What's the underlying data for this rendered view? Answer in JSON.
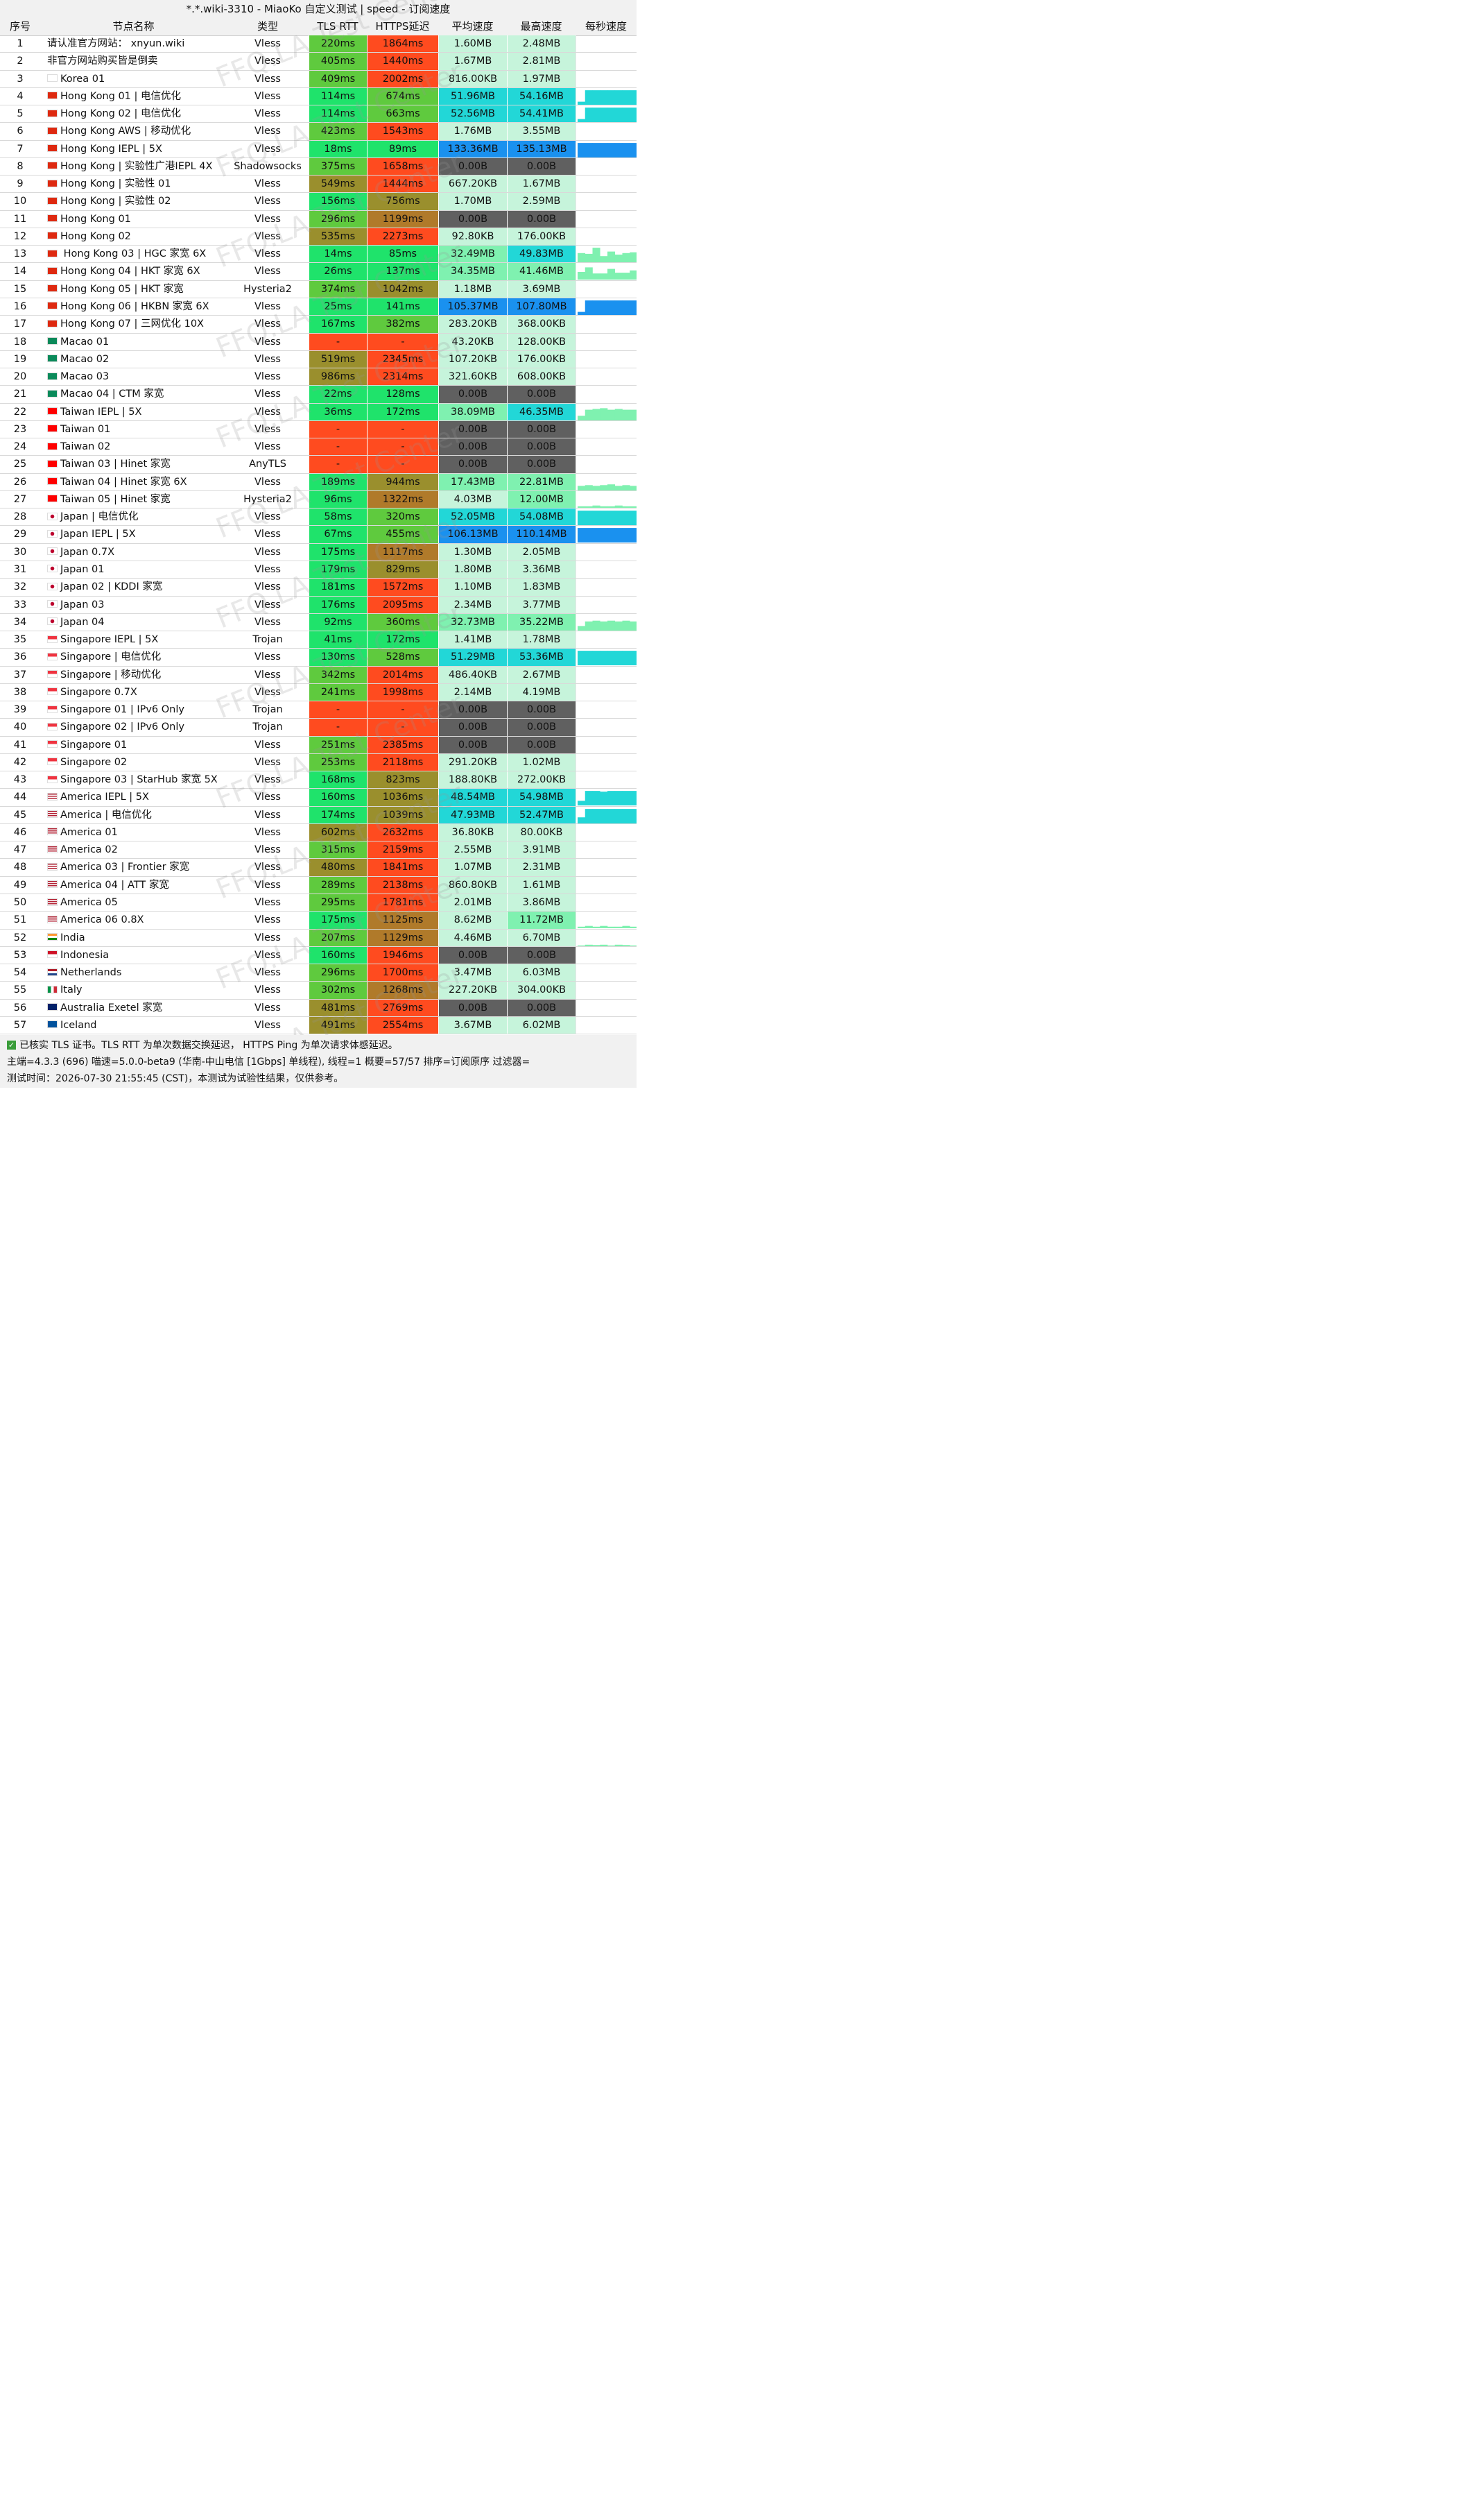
{
  "title": "*.*.wiki-3310 - MiaoKo 自定义测试 | speed - 订阅速度",
  "columns": [
    "序号",
    "节点名称",
    "类型",
    "TLS RTT",
    "HTTPS延迟",
    "平均速度",
    "最高速度",
    "每秒速度"
  ],
  "watermark": "FFQ.LA Test Center",
  "rows": [
    {
      "idx": "1",
      "flag": "",
      "name": "请认准官方网站： xnyun.wiki",
      "type": "Vless",
      "tls": "220ms",
      "https": "1864ms",
      "avg": "1.60MB",
      "max": "2.48MB",
      "spark": []
    },
    {
      "idx": "2",
      "flag": "",
      "name": "非官方网站购买皆是倒卖",
      "type": "Vless",
      "tls": "405ms",
      "https": "1440ms",
      "avg": "1.67MB",
      "max": "2.81MB",
      "spark": []
    },
    {
      "idx": "3",
      "flag": "kr",
      "name": "Korea 01",
      "type": "Vless",
      "tls": "409ms",
      "https": "2002ms",
      "avg": "816.00KB",
      "max": "1.97MB",
      "spark": []
    },
    {
      "idx": "4",
      "flag": "hk",
      "name": "Hong Kong 01 | 电信优化",
      "type": "Vless",
      "tls": "114ms",
      "https": "674ms",
      "avg": "51.96MB",
      "max": "54.16MB",
      "spark": [
        0.2,
        0.95,
        0.95,
        0.95,
        0.95,
        0.95,
        0.95,
        0.95
      ]
    },
    {
      "idx": "5",
      "flag": "hk",
      "name": "Hong Kong 02 | 电信优化",
      "type": "Vless",
      "tls": "114ms",
      "https": "663ms",
      "avg": "52.56MB",
      "max": "54.41MB",
      "spark": [
        0.2,
        0.95,
        0.95,
        0.95,
        0.95,
        0.95,
        0.95,
        0.95
      ]
    },
    {
      "idx": "6",
      "flag": "hk",
      "name": "Hong Kong AWS | 移动优化",
      "type": "Vless",
      "tls": "423ms",
      "https": "1543ms",
      "avg": "1.76MB",
      "max": "3.55MB",
      "spark": []
    },
    {
      "idx": "7",
      "flag": "hk",
      "name": "Hong Kong IEPL | 5X",
      "type": "Vless",
      "tls": "18ms",
      "https": "89ms",
      "avg": "133.36MB",
      "max": "135.13MB",
      "spark": [
        0.95,
        0.95,
        0.95,
        0.95,
        0.95,
        0.95,
        0.95,
        0.95
      ]
    },
    {
      "idx": "8",
      "flag": "hk",
      "name": "Hong Kong | 实验性广港IEPL 4X",
      "type": "Shadowsocks",
      "tls": "375ms",
      "https": "1658ms",
      "avg": "0.00B",
      "max": "0.00B",
      "spark": []
    },
    {
      "idx": "9",
      "flag": "hk",
      "name": "Hong Kong | 实验性 01",
      "type": "Vless",
      "tls": "549ms",
      "https": "1444ms",
      "avg": "667.20KB",
      "max": "1.67MB",
      "spark": []
    },
    {
      "idx": "10",
      "flag": "hk",
      "name": "Hong Kong | 实验性 02",
      "type": "Vless",
      "tls": "156ms",
      "https": "756ms",
      "avg": "1.70MB",
      "max": "2.59MB",
      "spark": []
    },
    {
      "idx": "11",
      "flag": "hk",
      "name": "Hong Kong 01",
      "type": "Vless",
      "tls": "296ms",
      "https": "1199ms",
      "avg": "0.00B",
      "max": "0.00B",
      "spark": []
    },
    {
      "idx": "12",
      "flag": "hk",
      "name": "Hong Kong 02",
      "type": "Vless",
      "tls": "535ms",
      "https": "2273ms",
      "avg": "92.80KB",
      "max": "176.00KB",
      "spark": []
    },
    {
      "idx": "13",
      "flag": "hk",
      "name": " Hong Kong 03 | HGC 家宽 6X",
      "type": "Vless",
      "tls": "14ms",
      "https": "85ms",
      "avg": "32.49MB",
      "max": "49.83MB",
      "spark": [
        0.6,
        0.55,
        0.95,
        0.4,
        0.7,
        0.5,
        0.6,
        0.65
      ]
    },
    {
      "idx": "14",
      "flag": "hk",
      "name": "Hong Kong 04 | HKT 家宽 6X",
      "type": "Vless",
      "tls": "26ms",
      "https": "137ms",
      "avg": "34.35MB",
      "max": "41.46MB",
      "spark": [
        0.5,
        0.8,
        0.4,
        0.4,
        0.7,
        0.45,
        0.45,
        0.6
      ]
    },
    {
      "idx": "15",
      "flag": "hk",
      "name": "Hong Kong 05 | HKT 家宽",
      "type": "Hysteria2",
      "tls": "374ms",
      "https": "1042ms",
      "avg": "1.18MB",
      "max": "3.69MB",
      "spark": []
    },
    {
      "idx": "16",
      "flag": "hk",
      "name": "Hong Kong 06 | HKBN 家宽 6X",
      "type": "Vless",
      "tls": "25ms",
      "https": "141ms",
      "avg": "105.37MB",
      "max": "107.80MB",
      "spark": [
        0.2,
        0.95,
        0.95,
        0.95,
        0.95,
        0.95,
        0.95,
        0.95
      ]
    },
    {
      "idx": "17",
      "flag": "hk",
      "name": "Hong Kong 07 | 三网优化 10X",
      "type": "Vless",
      "tls": "167ms",
      "https": "382ms",
      "avg": "283.20KB",
      "max": "368.00KB",
      "spark": []
    },
    {
      "idx": "18",
      "flag": "mo",
      "name": "Macao 01",
      "type": "Vless",
      "tls": "-",
      "https": "-",
      "avg": "43.20KB",
      "max": "128.00KB",
      "spark": []
    },
    {
      "idx": "19",
      "flag": "mo",
      "name": "Macao 02",
      "type": "Vless",
      "tls": "519ms",
      "https": "2345ms",
      "avg": "107.20KB",
      "max": "176.00KB",
      "spark": []
    },
    {
      "idx": "20",
      "flag": "mo",
      "name": "Macao 03",
      "type": "Vless",
      "tls": "986ms",
      "https": "2314ms",
      "avg": "321.60KB",
      "max": "608.00KB",
      "spark": []
    },
    {
      "idx": "21",
      "flag": "mo",
      "name": "Macao 04 | CTM 家宽",
      "type": "Vless",
      "tls": "22ms",
      "https": "128ms",
      "avg": "0.00B",
      "max": "0.00B",
      "spark": []
    },
    {
      "idx": "22",
      "flag": "tw",
      "name": "Taiwan IEPL | 5X",
      "type": "Vless",
      "tls": "36ms",
      "https": "172ms",
      "avg": "38.09MB",
      "max": "46.35MB",
      "spark": [
        0.3,
        0.7,
        0.75,
        0.8,
        0.7,
        0.75,
        0.7,
        0.7
      ]
    },
    {
      "idx": "23",
      "flag": "tw",
      "name": "Taiwan 01",
      "type": "Vless",
      "tls": "-",
      "https": "-",
      "avg": "0.00B",
      "max": "0.00B",
      "spark": []
    },
    {
      "idx": "24",
      "flag": "tw",
      "name": "Taiwan 02",
      "type": "Vless",
      "tls": "-",
      "https": "-",
      "avg": "0.00B",
      "max": "0.00B",
      "spark": []
    },
    {
      "idx": "25",
      "flag": "tw",
      "name": "Taiwan 03 | Hinet 家宽",
      "type": "AnyTLS",
      "tls": "-",
      "https": "-",
      "avg": "0.00B",
      "max": "0.00B",
      "spark": []
    },
    {
      "idx": "26",
      "flag": "tw",
      "name": "Taiwan 04 | Hinet 家宽 6X",
      "type": "Vless",
      "tls": "189ms",
      "https": "944ms",
      "avg": "17.43MB",
      "max": "22.81MB",
      "spark": [
        0.3,
        0.35,
        0.3,
        0.35,
        0.4,
        0.3,
        0.35,
        0.3
      ]
    },
    {
      "idx": "27",
      "flag": "tw",
      "name": "Taiwan 05 | Hinet 家宽",
      "type": "Hysteria2",
      "tls": "96ms",
      "https": "1322ms",
      "avg": "4.03MB",
      "max": "12.00MB",
      "spark": [
        0.1,
        0.1,
        0.15,
        0.1,
        0.1,
        0.15,
        0.1,
        0.1
      ]
    },
    {
      "idx": "28",
      "flag": "jp",
      "name": "Japan | 电信优化",
      "type": "Vless",
      "tls": "58ms",
      "https": "320ms",
      "avg": "52.05MB",
      "max": "54.08MB",
      "spark": [
        0.95,
        0.95,
        0.95,
        0.95,
        0.95,
        0.95,
        0.95,
        0.95
      ]
    },
    {
      "idx": "29",
      "flag": "jp",
      "name": "Japan IEPL | 5X",
      "type": "Vless",
      "tls": "67ms",
      "https": "455ms",
      "avg": "106.13MB",
      "max": "110.14MB",
      "spark": [
        0.95,
        0.95,
        0.95,
        0.95,
        0.95,
        0.95,
        0.95,
        0.95
      ]
    },
    {
      "idx": "30",
      "flag": "jp",
      "name": "Japan 0.7X",
      "type": "Vless",
      "tls": "175ms",
      "https": "1117ms",
      "avg": "1.30MB",
      "max": "2.05MB",
      "spark": []
    },
    {
      "idx": "31",
      "flag": "jp",
      "name": "Japan 01",
      "type": "Vless",
      "tls": "179ms",
      "https": "829ms",
      "avg": "1.80MB",
      "max": "3.36MB",
      "spark": []
    },
    {
      "idx": "32",
      "flag": "jp",
      "name": "Japan 02 | KDDI 家宽",
      "type": "Vless",
      "tls": "181ms",
      "https": "1572ms",
      "avg": "1.10MB",
      "max": "1.83MB",
      "spark": []
    },
    {
      "idx": "33",
      "flag": "jp",
      "name": "Japan 03",
      "type": "Vless",
      "tls": "176ms",
      "https": "2095ms",
      "avg": "2.34MB",
      "max": "3.77MB",
      "spark": []
    },
    {
      "idx": "34",
      "flag": "jp",
      "name": "Japan 04",
      "type": "Vless",
      "tls": "92ms",
      "https": "360ms",
      "avg": "32.73MB",
      "max": "35.22MB",
      "spark": [
        0.3,
        0.6,
        0.65,
        0.6,
        0.65,
        0.6,
        0.65,
        0.6
      ]
    },
    {
      "idx": "35",
      "flag": "sg",
      "name": "Singapore IEPL | 5X",
      "type": "Trojan",
      "tls": "41ms",
      "https": "172ms",
      "avg": "1.41MB",
      "max": "1.78MB",
      "spark": []
    },
    {
      "idx": "36",
      "flag": "sg",
      "name": "Singapore | 电信优化",
      "type": "Vless",
      "tls": "130ms",
      "https": "528ms",
      "avg": "51.29MB",
      "max": "53.36MB",
      "spark": [
        0.95,
        0.95,
        0.95,
        0.95,
        0.95,
        0.95,
        0.95,
        0.95
      ]
    },
    {
      "idx": "37",
      "flag": "sg",
      "name": "Singapore | 移动优化",
      "type": "Vless",
      "tls": "342ms",
      "https": "2014ms",
      "avg": "486.40KB",
      "max": "2.67MB",
      "spark": []
    },
    {
      "idx": "38",
      "flag": "sg",
      "name": "Singapore 0.7X",
      "type": "Vless",
      "tls": "241ms",
      "https": "1998ms",
      "avg": "2.14MB",
      "max": "4.19MB",
      "spark": []
    },
    {
      "idx": "39",
      "flag": "sg",
      "name": "Singapore 01 | IPv6 Only",
      "type": "Trojan",
      "tls": "-",
      "https": "-",
      "avg": "0.00B",
      "max": "0.00B",
      "spark": []
    },
    {
      "idx": "40",
      "flag": "sg",
      "name": "Singapore 02 | IPv6 Only",
      "type": "Trojan",
      "tls": "-",
      "https": "-",
      "avg": "0.00B",
      "max": "0.00B",
      "spark": []
    },
    {
      "idx": "41",
      "flag": "sg",
      "name": "Singapore 01",
      "type": "Vless",
      "tls": "251ms",
      "https": "2385ms",
      "avg": "0.00B",
      "max": "0.00B",
      "spark": []
    },
    {
      "idx": "42",
      "flag": "sg",
      "name": "Singapore 02",
      "type": "Vless",
      "tls": "253ms",
      "https": "2118ms",
      "avg": "291.20KB",
      "max": "1.02MB",
      "spark": []
    },
    {
      "idx": "43",
      "flag": "sg",
      "name": "Singapore 03 | StarHub 家宽 5X",
      "type": "Vless",
      "tls": "168ms",
      "https": "823ms",
      "avg": "188.80KB",
      "max": "272.00KB",
      "spark": []
    },
    {
      "idx": "44",
      "flag": "us",
      "name": "America IEPL | 5X",
      "type": "Vless",
      "tls": "160ms",
      "https": "1036ms",
      "avg": "48.54MB",
      "max": "54.98MB",
      "spark": [
        0.3,
        0.95,
        0.95,
        0.9,
        0.95,
        0.95,
        0.95,
        0.95
      ]
    },
    {
      "idx": "45",
      "flag": "us",
      "name": "America | 电信优化",
      "type": "Vless",
      "tls": "174ms",
      "https": "1039ms",
      "avg": "47.93MB",
      "max": "52.47MB",
      "spark": [
        0.4,
        0.95,
        0.95,
        0.95,
        0.95,
        0.95,
        0.95,
        0.95
      ]
    },
    {
      "idx": "46",
      "flag": "us",
      "name": "America 01",
      "type": "Vless",
      "tls": "602ms",
      "https": "2632ms",
      "avg": "36.80KB",
      "max": "80.00KB",
      "spark": []
    },
    {
      "idx": "47",
      "flag": "us",
      "name": "America 02",
      "type": "Vless",
      "tls": "315ms",
      "https": "2159ms",
      "avg": "2.55MB",
      "max": "3.91MB",
      "spark": []
    },
    {
      "idx": "48",
      "flag": "us",
      "name": "America 03 | Frontier 家宽",
      "type": "Vless",
      "tls": "480ms",
      "https": "1841ms",
      "avg": "1.07MB",
      "max": "2.31MB",
      "spark": []
    },
    {
      "idx": "49",
      "flag": "us",
      "name": "America 04 | ATT 家宽",
      "type": "Vless",
      "tls": "289ms",
      "https": "2138ms",
      "avg": "860.80KB",
      "max": "1.61MB",
      "spark": []
    },
    {
      "idx": "50",
      "flag": "us",
      "name": "America 05",
      "type": "Vless",
      "tls": "295ms",
      "https": "1781ms",
      "avg": "2.01MB",
      "max": "3.86MB",
      "spark": []
    },
    {
      "idx": "51",
      "flag": "us",
      "name": "America 06 0.8X",
      "type": "Vless",
      "tls": "175ms",
      "https": "1125ms",
      "avg": "8.62MB",
      "max": "11.72MB",
      "spark": [
        0.1,
        0.15,
        0.1,
        0.15,
        0.1,
        0.1,
        0.15,
        0.1
      ]
    },
    {
      "idx": "52",
      "flag": "in",
      "name": "India",
      "type": "Vless",
      "tls": "207ms",
      "https": "1129ms",
      "avg": "4.46MB",
      "max": "6.70MB",
      "spark": [
        0.05,
        0.1,
        0.08,
        0.1,
        0.05,
        0.1,
        0.08,
        0.05
      ]
    },
    {
      "idx": "53",
      "flag": "id",
      "name": "Indonesia",
      "type": "Vless",
      "tls": "160ms",
      "https": "1946ms",
      "avg": "0.00B",
      "max": "0.00B",
      "spark": []
    },
    {
      "idx": "54",
      "flag": "nl",
      "name": "Netherlands",
      "type": "Vless",
      "tls": "296ms",
      "https": "1700ms",
      "avg": "3.47MB",
      "max": "6.03MB",
      "spark": []
    },
    {
      "idx": "55",
      "flag": "it",
      "name": "Italy",
      "type": "Vless",
      "tls": "302ms",
      "https": "1268ms",
      "avg": "227.20KB",
      "max": "304.00KB",
      "spark": []
    },
    {
      "idx": "56",
      "flag": "au",
      "name": "Australia Exetel 家宽",
      "type": "Vless",
      "tls": "481ms",
      "https": "2769ms",
      "avg": "0.00B",
      "max": "0.00B",
      "spark": []
    },
    {
      "idx": "57",
      "flag": "is",
      "name": "Iceland",
      "type": "Vless",
      "tls": "491ms",
      "https": "2554ms",
      "avg": "3.67MB",
      "max": "6.02MB",
      "spark": []
    }
  ],
  "footer": {
    "line1": "已核实 TLS 证书。TLS RTT 为单次数据交换延迟， HTTPS Ping 为单次请求体感延迟。",
    "line2": "主端=4.3.3 (696) 喵速=5.0.0-beta9 (华南-中山电信 [1Gbps] 单线程), 线程=1 概要=57/57 排序=订阅原序 过滤器=",
    "line3": "测试时间：2026-07-30 21:55:45 (CST)，本测试为试验性结果，仅供参考。"
  },
  "colors": {
    "fail": "#ff4b1f",
    "tls_fast": "#1fe36b",
    "tls_mid": "#5fca3e",
    "tls_slow": "#9a8f2d",
    "zero_speed": "#606060",
    "speed_low": "#c6f4db",
    "speed_mid": "#7ff1b0",
    "speed_high": "#22d7d7",
    "speed_top": "#1a91ef"
  }
}
